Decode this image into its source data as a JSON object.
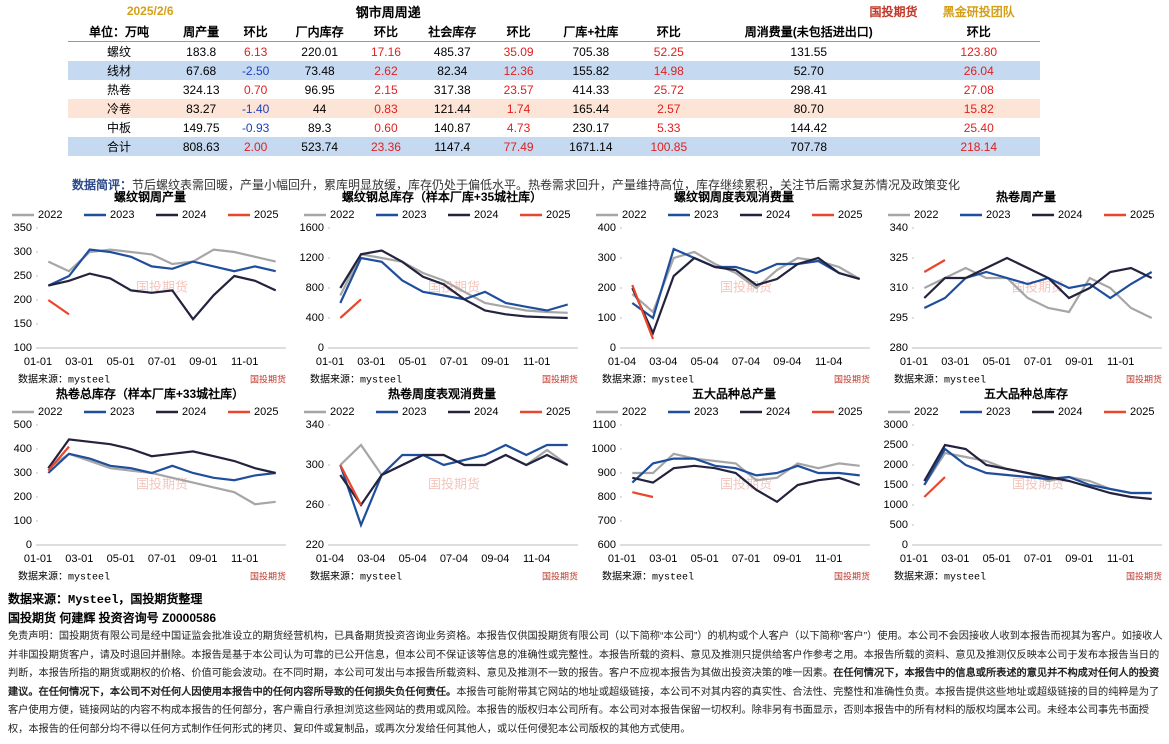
{
  "header": {
    "date": "2025/2/6",
    "title": "钢市周周递",
    "logo": "国投期货",
    "team": "黑金研投团队"
  },
  "table": {
    "columns": [
      "单位：万吨",
      "周产量",
      "环比",
      "厂内库存",
      "环比",
      "社会库存",
      "环比",
      "厂库+社库",
      "环比",
      "周消费量(未包括进出口)",
      "环比"
    ],
    "rows": [
      [
        "螺纹",
        "183.8",
        "6.13",
        "220.01",
        "17.16",
        "485.37",
        "35.09",
        "705.38",
        "52.25",
        "131.55",
        "123.80"
      ],
      [
        "线材",
        "67.68",
        "-2.50",
        "73.48",
        "2.62",
        "82.34",
        "12.36",
        "155.82",
        "14.98",
        "52.70",
        "26.04"
      ],
      [
        "热卷",
        "324.13",
        "0.70",
        "96.95",
        "2.15",
        "317.38",
        "23.57",
        "414.33",
        "25.72",
        "298.41",
        "27.08"
      ],
      [
        "冷卷",
        "83.27",
        "-1.40",
        "44",
        "0.83",
        "121.44",
        "1.74",
        "165.44",
        "2.57",
        "80.70",
        "15.82"
      ],
      [
        "中板",
        "149.75",
        "-0.93",
        "89.3",
        "0.60",
        "140.87",
        "4.73",
        "230.17",
        "5.33",
        "144.42",
        "25.40"
      ],
      [
        "合计",
        "808.63",
        "2.00",
        "523.74",
        "23.36",
        "1147.4",
        "77.49",
        "1671.14",
        "100.85",
        "707.78",
        "218.14"
      ]
    ],
    "row_colors": [
      "#ffffff",
      "#c5d9f1",
      "#ffffff",
      "#fce4d6",
      "#ffffff",
      "#c5d9f1"
    ],
    "up_color": "#e02020",
    "down_color": "#1f3fbf"
  },
  "comment": {
    "label": "数据简评：",
    "text": "节后螺纹表需回暖，产量小幅回升，累库明显放缓，库存仍处于偏低水平。热卷需求回升，产量维持高位，库存继续累积，关注节后需求复苏情况及政策变化"
  },
  "chart_data": [
    {
      "type": "line",
      "title": "螺纹钢周产量",
      "categories": [
        "01-01",
        null,
        "03-01",
        null,
        "05-01",
        null,
        "07-01",
        null,
        "09-01",
        null,
        "11-01",
        null
      ],
      "series": [
        {
          "name": "2022",
          "color": "#a6a6a6",
          "values": [
            280,
            260,
            300,
            305,
            300,
            295,
            275,
            280,
            305,
            300,
            290,
            280
          ]
        },
        {
          "name": "2023",
          "color": "#1f4e9c",
          "values": [
            230,
            250,
            305,
            300,
            290,
            270,
            265,
            280,
            270,
            260,
            270,
            260
          ]
        },
        {
          "name": "2024",
          "color": "#23233f",
          "values": [
            230,
            240,
            255,
            245,
            220,
            215,
            220,
            160,
            210,
            250,
            240,
            220
          ]
        },
        {
          "name": "2025",
          "color": "#e8472c",
          "values": [
            200,
            170,
            null,
            null,
            null,
            null,
            null,
            null,
            null,
            null,
            null,
            null
          ]
        }
      ],
      "ylim": [
        100,
        350
      ],
      "yticks": [
        100,
        150,
        200,
        250,
        300,
        350
      ],
      "source": "数据来源：mysteel",
      "logo": "国投期货",
      "watermark": "国投期货"
    },
    {
      "type": "line",
      "title": "螺纹钢总库存（样本厂库+35城社库）",
      "categories": [
        "01-01",
        null,
        "03-01",
        null,
        "05-01",
        null,
        "07-01",
        null,
        "09-01",
        null,
        "11-01",
        null
      ],
      "series": [
        {
          "name": "2022",
          "color": "#a6a6a6",
          "values": [
            700,
            1250,
            1200,
            1150,
            1000,
            900,
            750,
            600,
            550,
            500,
            480,
            470
          ]
        },
        {
          "name": "2023",
          "color": "#1f4e9c",
          "values": [
            600,
            1200,
            1150,
            900,
            750,
            700,
            650,
            750,
            600,
            550,
            500,
            580
          ]
        },
        {
          "name": "2024",
          "color": "#23233f",
          "values": [
            800,
            1250,
            1300,
            1150,
            950,
            850,
            650,
            500,
            450,
            420,
            410,
            400
          ]
        },
        {
          "name": "2025",
          "color": "#e8472c",
          "values": [
            400,
            650,
            null,
            null,
            null,
            null,
            null,
            null,
            null,
            null,
            null,
            null
          ]
        }
      ],
      "ylim": [
        0,
        1600
      ],
      "yticks": [
        0,
        400,
        800,
        1200,
        1600
      ],
      "source": "数据来源：mysteel",
      "logo": "国投期货",
      "watermark": "国投期货"
    },
    {
      "type": "line",
      "title": "螺纹钢周度表观消费量",
      "categories": [
        "01-04",
        null,
        "03-04",
        null,
        "05-04",
        null,
        "07-04",
        null,
        "09-04",
        null,
        "11-04",
        null
      ],
      "series": [
        {
          "name": "2022",
          "color": "#a6a6a6",
          "values": [
            180,
            120,
            300,
            320,
            280,
            250,
            200,
            260,
            300,
            290,
            270,
            230
          ]
        },
        {
          "name": "2023",
          "color": "#1f4e9c",
          "values": [
            150,
            100,
            330,
            300,
            270,
            270,
            250,
            280,
            280,
            290,
            250,
            230
          ]
        },
        {
          "name": "2024",
          "color": "#23233f",
          "values": [
            200,
            50,
            240,
            300,
            270,
            260,
            210,
            230,
            280,
            300,
            250,
            230
          ]
        },
        {
          "name": "2025",
          "color": "#e8472c",
          "values": [
            210,
            30,
            null,
            null,
            null,
            null,
            null,
            null,
            null,
            null,
            null,
            null
          ]
        }
      ],
      "ylim": [
        0,
        400
      ],
      "yticks": [
        0,
        100,
        200,
        300,
        400
      ],
      "source": "数据来源：mysteel",
      "logo": "国投期货",
      "watermark": "国投期货"
    },
    {
      "type": "line",
      "title": "热卷周产量",
      "categories": [
        "01-01",
        null,
        "03-01",
        null,
        "05-01",
        null,
        "07-01",
        null,
        "09-01",
        null,
        "11-01",
        null
      ],
      "series": [
        {
          "name": "2022",
          "color": "#a6a6a6",
          "values": [
            310,
            315,
            320,
            315,
            315,
            305,
            300,
            298,
            315,
            310,
            300,
            295
          ]
        },
        {
          "name": "2023",
          "color": "#1f4e9c",
          "values": [
            300,
            305,
            315,
            318,
            315,
            312,
            315,
            310,
            312,
            305,
            312,
            318
          ]
        },
        {
          "name": "2024",
          "color": "#23233f",
          "values": [
            305,
            315,
            315,
            320,
            325,
            320,
            315,
            305,
            310,
            318,
            320,
            315
          ]
        },
        {
          "name": "2025",
          "color": "#e8472c",
          "values": [
            318,
            324,
            null,
            null,
            null,
            null,
            null,
            null,
            null,
            null,
            null,
            null
          ]
        }
      ],
      "ylim": [
        280,
        340
      ],
      "yticks": [
        280,
        295,
        310,
        325,
        340
      ],
      "source": "数据来源：mysteel",
      "logo": "国投期货",
      "watermark": "国投期货"
    },
    {
      "type": "line",
      "title": "热卷总库存（样本厂库+33城社库）",
      "categories": [
        "01-01",
        null,
        "03-01",
        null,
        "05-01",
        null,
        "07-01",
        null,
        "09-01",
        null,
        "11-01",
        null
      ],
      "series": [
        {
          "name": "2022",
          "color": "#a6a6a6",
          "values": [
            320,
            380,
            350,
            320,
            310,
            300,
            280,
            260,
            240,
            220,
            170,
            180
          ]
        },
        {
          "name": "2023",
          "color": "#1f4e9c",
          "values": [
            300,
            380,
            360,
            330,
            320,
            300,
            330,
            300,
            280,
            270,
            290,
            300
          ]
        },
        {
          "name": "2024",
          "color": "#23233f",
          "values": [
            320,
            440,
            430,
            420,
            400,
            370,
            380,
            390,
            370,
            350,
            320,
            300
          ]
        },
        {
          "name": "2025",
          "color": "#e8472c",
          "values": [
            310,
            410,
            null,
            null,
            null,
            null,
            null,
            null,
            null,
            null,
            null,
            null
          ]
        }
      ],
      "ylim": [
        0,
        500
      ],
      "yticks": [
        0,
        100,
        200,
        300,
        400,
        500
      ],
      "source": "数据来源：mysteel",
      "logo": "国投期货",
      "watermark": "国投期货"
    },
    {
      "type": "line",
      "title": "热卷周度表观消费量",
      "categories": [
        "01-04",
        null,
        "03-04",
        null,
        "05-04",
        null,
        "07-04",
        null,
        "09-04",
        null,
        "11-04",
        null
      ],
      "series": [
        {
          "name": "2022",
          "color": "#a6a6a6",
          "values": [
            300,
            320,
            290,
            300,
            310,
            310,
            300,
            300,
            310,
            300,
            315,
            300
          ]
        },
        {
          "name": "2023",
          "color": "#1f4e9c",
          "values": [
            300,
            240,
            290,
            310,
            310,
            300,
            305,
            310,
            320,
            310,
            320,
            320
          ]
        },
        {
          "name": "2024",
          "color": "#23233f",
          "values": [
            290,
            260,
            290,
            300,
            310,
            310,
            300,
            300,
            310,
            300,
            310,
            300
          ]
        },
        {
          "name": "2025",
          "color": "#e8472c",
          "values": [
            300,
            260,
            null,
            null,
            null,
            null,
            null,
            null,
            null,
            null,
            null,
            null
          ]
        }
      ],
      "ylim": [
        220,
        340
      ],
      "yticks": [
        220,
        260,
        300,
        340
      ],
      "source": "数据来源：mysteel",
      "logo": "国投期货",
      "watermark": "国投期货"
    },
    {
      "type": "line",
      "title": "五大品种总产量",
      "categories": [
        "01-01",
        null,
        "03-01",
        null,
        "05-01",
        null,
        "07-01",
        null,
        "09-01",
        null,
        "11-01",
        null
      ],
      "series": [
        {
          "name": "2022",
          "color": "#a6a6a6",
          "values": [
            900,
            900,
            980,
            960,
            950,
            940,
            870,
            880,
            940,
            920,
            940,
            930
          ]
        },
        {
          "name": "2023",
          "color": "#1f4e9c",
          "values": [
            860,
            940,
            960,
            960,
            930,
            920,
            890,
            900,
            930,
            900,
            900,
            890
          ]
        },
        {
          "name": "2024",
          "color": "#23233f",
          "values": [
            880,
            860,
            920,
            930,
            920,
            900,
            830,
            780,
            850,
            870,
            880,
            850
          ]
        },
        {
          "name": "2025",
          "color": "#e8472c",
          "values": [
            820,
            800,
            null,
            null,
            null,
            null,
            null,
            null,
            null,
            null,
            null,
            null
          ]
        }
      ],
      "ylim": [
        600,
        1100
      ],
      "yticks": [
        600,
        700,
        800,
        900,
        1000,
        1100
      ],
      "source": "数据来源：mysteel",
      "logo": "国投期货",
      "watermark": "国投期货"
    },
    {
      "type": "line",
      "title": "五大品种总库存",
      "categories": [
        "01-01",
        null,
        "03-01",
        null,
        "05-01",
        null,
        "07-01",
        null,
        "09-01",
        null,
        "11-01",
        null
      ],
      "series": [
        {
          "name": "2022",
          "color": "#a6a6a6",
          "values": [
            1500,
            2300,
            2200,
            2100,
            1900,
            1800,
            1600,
            1700,
            1600,
            1400,
            1300,
            1300
          ]
        },
        {
          "name": "2023",
          "color": "#1f4e9c",
          "values": [
            1500,
            2400,
            2000,
            1800,
            1750,
            1700,
            1650,
            1700,
            1500,
            1400,
            1300,
            1300
          ]
        },
        {
          "name": "2024",
          "color": "#23233f",
          "values": [
            1600,
            2500,
            2400,
            2000,
            1900,
            1800,
            1700,
            1600,
            1450,
            1300,
            1200,
            1150
          ]
        },
        {
          "name": "2025",
          "color": "#e8472c",
          "values": [
            1200,
            1700,
            null,
            null,
            null,
            null,
            null,
            null,
            null,
            null,
            null,
            null
          ]
        }
      ],
      "ylim": [
        0,
        3000
      ],
      "yticks": [
        0,
        500,
        1000,
        1500,
        2000,
        2500,
        3000
      ],
      "source": "数据来源：mysteel",
      "logo": "国投期货",
      "watermark": "国投期货"
    }
  ],
  "footer": {
    "source": "数据来源：Mysteel，国投期货整理",
    "author": "国投期货  何建辉  投资咨询号 Z0000586"
  },
  "disclaimer": [
    {
      "text": "免责声明：国投期货有限公司是经中国证监会批准设立的期货经营机构，已具备期货投资咨询业务资格。本报告仅供国投期货有限公司（以下简称“本公司”）的机构或个人客户（以下简称“客户”）使用。本公司不会因接收人收到本报告而视其为客户。如接收人并非国投期货客户，请及时退回并删除。本报告是基于本公司认为可靠的已公开信息，但本公司不保证该等信息的准确性或完整性。本报告所载的资料、意见及推测只提供给客户作参考之用。本报告所载的资料、意见及推测仅反映本公司于发布本报告当日的判断，本报告所指的期货或期权的价格、价值可能会波动。在不同时期，本公司可发出与本报告所载资料、意见及推测不一致的报告。客户不应视本报告为其做出投资决策的唯一因素。",
      "bold": false
    },
    {
      "text": "在任何情况下，本报告中的信息或所表述的意见并不构成对任何人的投资建议。在任何情况下，本公司不对任何人因使用本报告中的任何内容所导致的任何损失负任何责任。",
      "bold": true
    },
    {
      "text": "本报告可能附带其它网站的地址或超级链接，本公司不对其内容的真实性、合法性、完整性和准确性负责。本报告提供这些地址或超级链接的目的纯粹是为了客户使用方便，链接网站的内容不构成本报告的任何部分，客户需自行承担浏览这些网站的费用或风险。本报告的版权归本公司所有。本公司对本报告保留一切权利。除非另有书面显示，否则本报告中的所有材料的版权均属本公司。未经本公司事先书面授权，本报告的任何部分均不得以任何方式制作任何形式的拷贝、复印件或复制品，或再次分发给任何其他人，或以任何侵犯本公司版权的其他方式使用。",
      "bold": false
    }
  ]
}
